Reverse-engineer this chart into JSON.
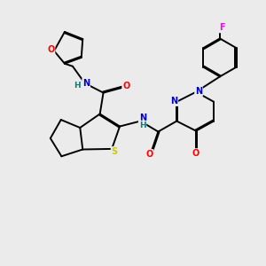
{
  "bg_color": "#ebebeb",
  "bond_color": "#000000",
  "atom_colors": {
    "O": "#ff0000",
    "N": "#0000cd",
    "S": "#cccc00",
    "F": "#ff00ff",
    "H": "#008080",
    "C": "#000000"
  },
  "figsize": [
    3.0,
    3.0
  ],
  "dpi": 100
}
